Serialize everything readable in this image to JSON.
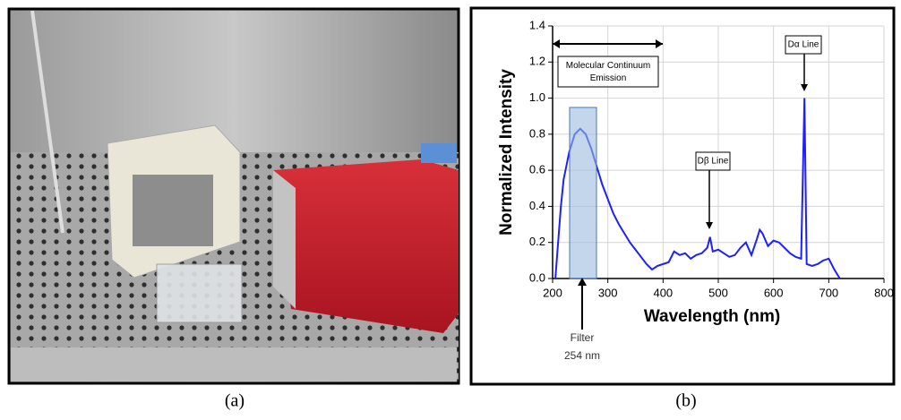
{
  "panel_labels": [
    "(a)",
    "(b)"
  ],
  "chart_data": {
    "type": "line",
    "xlabel": "Wavelength (nm)",
    "ylabel": "Normalized Intensity",
    "xlim": [
      200,
      800
    ],
    "xticks": [
      200,
      300,
      400,
      500,
      600,
      700,
      800
    ],
    "ylim": [
      0,
      1.4
    ],
    "yticks": [
      {
        "value": 0,
        "label": "0.0"
      },
      0.2,
      0.4,
      0.6,
      0.8,
      {
        "value": 1,
        "label": "1.0"
      },
      1.2,
      1.4
    ],
    "grid": true,
    "annotations": [
      "Molecular Continuum Emission",
      "Dβ Line",
      "Dα Line",
      "Filter",
      "254 nm"
    ],
    "series": [
      {
        "color": "#1f1fff",
        "x": [
          205,
          210,
          215,
          220,
          230,
          240,
          250,
          260,
          270,
          280,
          290,
          300,
          310,
          320,
          330,
          340,
          350,
          360,
          370,
          380,
          390,
          400,
          410,
          420,
          430,
          440,
          450,
          460,
          470,
          480,
          485,
          490,
          500,
          510,
          520,
          530,
          540,
          550,
          560,
          570,
          575,
          580,
          590,
          600,
          610,
          620,
          630,
          640,
          650,
          656,
          660,
          670,
          680,
          690,
          700,
          710,
          720
        ],
        "values": [
          0.0,
          0.2,
          0.4,
          0.55,
          0.7,
          0.8,
          0.83,
          0.8,
          0.72,
          0.62,
          0.52,
          0.44,
          0.36,
          0.3,
          0.25,
          0.2,
          0.16,
          0.12,
          0.08,
          0.05,
          0.07,
          0.08,
          0.09,
          0.15,
          0.13,
          0.14,
          0.11,
          0.13,
          0.14,
          0.17,
          0.23,
          0.15,
          0.16,
          0.14,
          0.12,
          0.13,
          0.17,
          0.2,
          0.13,
          0.22,
          0.27,
          0.25,
          0.18,
          0.21,
          0.2,
          0.17,
          0.14,
          0.12,
          0.11,
          1.0,
          0.08,
          0.07,
          0.08,
          0.1,
          0.11,
          0.05,
          0.0
        ]
      }
    ]
  }
}
